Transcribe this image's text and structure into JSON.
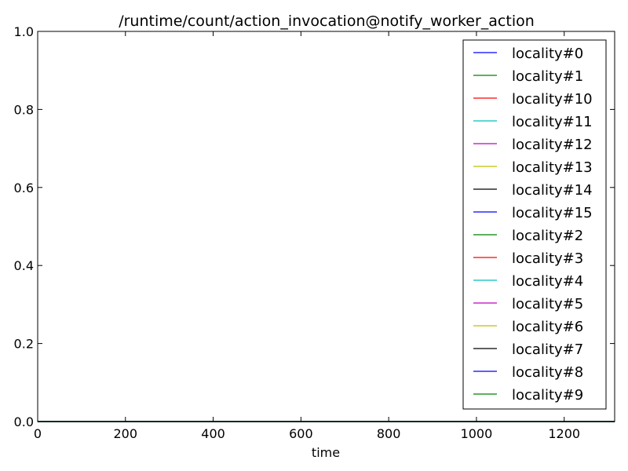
{
  "chart_data": {
    "type": "line",
    "title": "/runtime/count/action_invocation@notify_worker_action",
    "xlabel": "time",
    "ylabel": "",
    "xlim": [
      0,
      1315
    ],
    "ylim": [
      0,
      1
    ],
    "x_ticks": [
      "0",
      "200",
      "400",
      "600",
      "800",
      "1000",
      "1200"
    ],
    "x_tick_values": [
      0,
      200,
      400,
      600,
      800,
      1000,
      1200
    ],
    "y_ticks": [
      "0.0",
      "0.2",
      "0.4",
      "0.6",
      "0.8",
      "1.0"
    ],
    "y_tick_values": [
      0,
      0.2,
      0.4,
      0.6,
      0.8,
      1.0
    ],
    "grid": false,
    "legend_position": "top-right",
    "series": [
      {
        "name": "locality#0",
        "color": "#0000ff",
        "x": [
          0,
          1315
        ],
        "y": [
          0,
          0
        ]
      },
      {
        "name": "locality#1",
        "color": "#008000",
        "x": [
          0,
          1315
        ],
        "y": [
          0,
          0
        ]
      },
      {
        "name": "locality#10",
        "color": "#ff0000",
        "x": [
          0,
          1315
        ],
        "y": [
          0,
          0
        ]
      },
      {
        "name": "locality#11",
        "color": "#00bfbf",
        "x": [
          0,
          1315
        ],
        "y": [
          0,
          0
        ]
      },
      {
        "name": "locality#12",
        "color": "#bf00bf",
        "x": [
          0,
          1315
        ],
        "y": [
          0,
          0
        ]
      },
      {
        "name": "locality#13",
        "color": "#bfbf00",
        "x": [
          0,
          1315
        ],
        "y": [
          0,
          0
        ]
      },
      {
        "name": "locality#14",
        "color": "#000000",
        "x": [
          0,
          1315
        ],
        "y": [
          0,
          0
        ]
      },
      {
        "name": "locality#15",
        "color": "#0000ff",
        "x": [
          0,
          1315
        ],
        "y": [
          0,
          0
        ]
      },
      {
        "name": "locality#2",
        "color": "#008000",
        "x": [
          0,
          1315
        ],
        "y": [
          0,
          0
        ]
      },
      {
        "name": "locality#3",
        "color": "#ff0000",
        "x": [
          0,
          1315
        ],
        "y": [
          0,
          0
        ]
      },
      {
        "name": "locality#4",
        "color": "#00bfbf",
        "x": [
          0,
          1315
        ],
        "y": [
          0,
          0
        ]
      },
      {
        "name": "locality#5",
        "color": "#bf00bf",
        "x": [
          0,
          1315
        ],
        "y": [
          0,
          0
        ]
      },
      {
        "name": "locality#6",
        "color": "#bfbf00",
        "x": [
          0,
          1315
        ],
        "y": [
          0,
          0
        ]
      },
      {
        "name": "locality#7",
        "color": "#000000",
        "x": [
          0,
          1315
        ],
        "y": [
          0,
          0
        ]
      },
      {
        "name": "locality#8",
        "color": "#0000ff",
        "x": [
          0,
          1315
        ],
        "y": [
          0,
          0
        ]
      },
      {
        "name": "locality#9",
        "color": "#008000",
        "x": [
          0,
          1315
        ],
        "y": [
          0,
          0
        ]
      }
    ]
  }
}
